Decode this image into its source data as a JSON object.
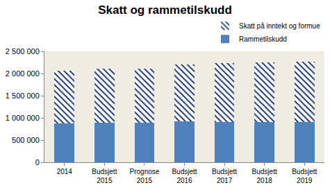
{
  "chart_data": {
    "type": "bar",
    "title": "Skatt og rammetilskudd",
    "categories": [
      "2014",
      "Budsjett 2015",
      "Prognose 2015",
      "Budsjett 2016",
      "Budsjett 2017",
      "Budsjett 2018",
      "Budsjett 2019"
    ],
    "series": [
      {
        "name": "Rammetilskudd",
        "color": "#4F81BD",
        "values": [
          870000,
          890000,
          890000,
          920000,
          910000,
          910000,
          910000
        ]
      },
      {
        "name": "Skatt på inntekt og formue",
        "color": "#1F3A78",
        "marker": "hatch",
        "values": [
          1190000,
          1220000,
          1220000,
          1290000,
          1320000,
          1340000,
          1360000
        ]
      }
    ],
    "stacked": true,
    "ylim": [
      0,
      2500000
    ],
    "yticks": [
      0,
      {
        "value": 500000,
        "label": "500 000"
      },
      {
        "value": 1000000,
        "label": "1 000 000"
      },
      {
        "value": 1500000,
        "label": "1 500 000"
      },
      {
        "value": 2000000,
        "label": "2 000 000"
      },
      {
        "value": 2500000,
        "label": "2 500 000"
      }
    ],
    "grid": false,
    "legend": "top right"
  }
}
